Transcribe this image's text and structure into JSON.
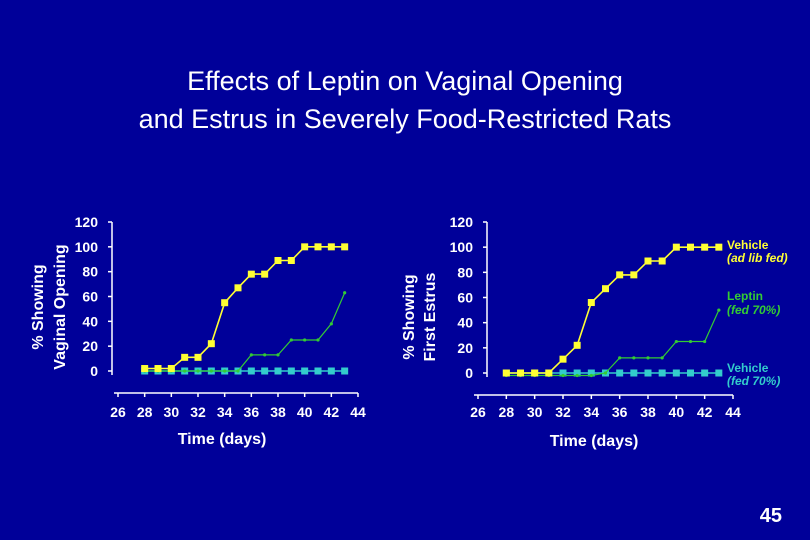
{
  "slide": {
    "title_line1": "Effects of Leptin on Vaginal Opening",
    "title_line2": "and Estrus in Severely Food-Restricted Rats",
    "page_number": "45"
  },
  "colors": {
    "background": "#000099",
    "vehicle_ad_lib": "#ffff33",
    "leptin": "#33cc33",
    "vehicle_fed70": "#33cccc",
    "axis": "#ffffff"
  },
  "legend": [
    {
      "series": "vehicle_ad_lib",
      "line1": "Vehicle",
      "line2": "(ad lib fed)"
    },
    {
      "series": "leptin",
      "line1": "Leptin",
      "line2": "(fed 70%)"
    },
    {
      "series": "vehicle_fed70",
      "line1": "Vehicle",
      "line2": "(fed 70%)"
    }
  ],
  "chart_data": [
    {
      "type": "line",
      "title": "",
      "xlabel": "Time (days)",
      "ylabel_line1": "% Showing",
      "ylabel_line2": "Vaginal Opening",
      "xlim": [
        26,
        44
      ],
      "ylim": [
        0,
        120
      ],
      "x_ticks": [
        "26",
        "28",
        "30",
        "32",
        "34",
        "36",
        "38",
        "40",
        "42",
        "44"
      ],
      "y_ticks": [
        "120",
        "100",
        "80",
        "60",
        "40",
        "20",
        "0"
      ],
      "series": [
        {
          "key": "vehicle_ad_lib",
          "name": "Vehicle (ad lib fed)",
          "x": [
            28,
            29,
            30,
            31,
            32,
            33,
            34,
            35,
            36,
            37,
            38,
            39,
            40,
            41,
            42,
            43
          ],
          "y": [
            2,
            2,
            2,
            11,
            11,
            22,
            55,
            67,
            78,
            78,
            89,
            89,
            100,
            100,
            100,
            100
          ]
        },
        {
          "key": "leptin",
          "name": "Leptin (fed 70%)",
          "x": [
            28,
            29,
            30,
            31,
            32,
            33,
            34,
            35,
            36,
            37,
            38,
            39,
            40,
            41,
            42,
            43
          ],
          "y": [
            0,
            0,
            0,
            0,
            0,
            0,
            0,
            0,
            13,
            13,
            13,
            25,
            25,
            25,
            38,
            63
          ]
        },
        {
          "key": "vehicle_fed70",
          "name": "Vehicle (fed 70%)",
          "x": [
            28,
            29,
            30,
            31,
            32,
            33,
            34,
            35,
            36,
            37,
            38,
            39,
            40,
            41,
            42,
            43
          ],
          "y": [
            0,
            0,
            0,
            0,
            0,
            0,
            0,
            0,
            0,
            0,
            0,
            0,
            0,
            0,
            0,
            0
          ]
        }
      ]
    },
    {
      "type": "line",
      "title": "",
      "xlabel": "Time (days)",
      "ylabel_line1": "% Showing",
      "ylabel_line2": "First Estrus",
      "xlim": [
        26,
        44
      ],
      "ylim": [
        0,
        120
      ],
      "x_ticks": [
        "26",
        "28",
        "30",
        "32",
        "34",
        "36",
        "38",
        "40",
        "42",
        "44"
      ],
      "y_ticks": [
        "120",
        "100",
        "80",
        "60",
        "40",
        "20",
        "0"
      ],
      "series": [
        {
          "key": "vehicle_ad_lib",
          "name": "Vehicle (ad lib fed)",
          "x": [
            28,
            29,
            30,
            31,
            32,
            33,
            34,
            35,
            36,
            37,
            38,
            39,
            40,
            41,
            42,
            43
          ],
          "y": [
            0,
            0,
            0,
            0,
            11,
            22,
            56,
            67,
            78,
            78,
            89,
            89,
            100,
            100,
            100,
            100
          ]
        },
        {
          "key": "leptin",
          "name": "Leptin (fed 70%)",
          "x": [
            28,
            29,
            30,
            31,
            32,
            33,
            34,
            35,
            36,
            37,
            38,
            39,
            40,
            41,
            42,
            43
          ],
          "y": [
            -2,
            -2,
            -2,
            -2,
            -2,
            -2,
            -2,
            0,
            12,
            12,
            12,
            12,
            25,
            25,
            25,
            50
          ]
        },
        {
          "key": "vehicle_fed70",
          "name": "Vehicle (fed 70%)",
          "x": [
            28,
            29,
            30,
            31,
            32,
            33,
            34,
            35,
            36,
            37,
            38,
            39,
            40,
            41,
            42,
            43
          ],
          "y": [
            0,
            0,
            0,
            0,
            0,
            0,
            0,
            0,
            0,
            0,
            0,
            0,
            0,
            0,
            0,
            0
          ]
        }
      ]
    }
  ]
}
